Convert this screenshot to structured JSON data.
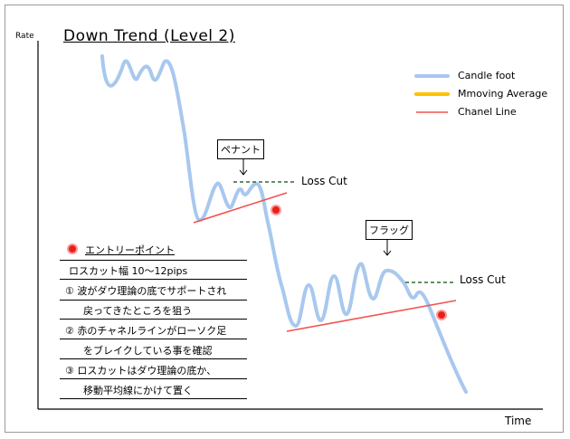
{
  "title": "Down Trend (Level 2)",
  "axes": {
    "y_label": "Rate",
    "x_label": "Time"
  },
  "legend": [
    {
      "label": "Candle foot",
      "color": "#a8c8ee"
    },
    {
      "label": "Mmoving Average",
      "color": "#ffc000"
    },
    {
      "label": "Chanel Line",
      "color": "#f2524f"
    }
  ],
  "annotations": {
    "pennant": "ペナント",
    "flag": "フラッグ",
    "loss_cut_1": "Loss Cut",
    "loss_cut_2": "Loss Cut"
  },
  "notes": {
    "entry_title": "エントリーポイント",
    "lines": [
      "ロスカット幅 10～12pips",
      "① 波がダウ理論の底でサポートされ",
      "戻ってきたところを狙う",
      "② 赤のチャネルラインがローソク足",
      "をブレイクしている事を確認",
      "③ ロスカットはダウ理論の底か、",
      "移動平均線にかけて置く"
    ]
  },
  "colors": {
    "entry_dot": "#e8201c",
    "loss_cut_line": "#2e6b2e"
  }
}
